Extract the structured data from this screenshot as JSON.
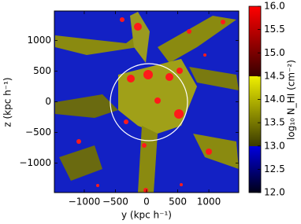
{
  "chart_data": {
    "type": "heatmap",
    "xlabel": "y (kpc h⁻¹)",
    "ylabel": "z (kpc h⁻¹)",
    "colorbar_label": "log₁₀ N_HI (cm⁻²)",
    "xlim": [
      -1480,
      1480
    ],
    "ylim": [
      -1480,
      1480
    ],
    "xticks": [
      {
        "value": -1000,
        "label": "−1000"
      },
      {
        "value": -500,
        "label": "−500"
      },
      0,
      500,
      1000
    ],
    "yticks": [
      {
        "value": -1000,
        "label": "−1000"
      },
      {
        "value": -500,
        "label": "−500"
      },
      0,
      500,
      1000
    ],
    "clim": [
      12,
      16
    ],
    "cticks": [
      {
        "value": 12,
        "label": "12.0"
      },
      {
        "value": 12.5,
        "label": "12.5"
      },
      {
        "value": 13,
        "label": "13.0"
      },
      {
        "value": 13.5,
        "label": "13.5"
      },
      {
        "value": 14,
        "label": "14.0"
      },
      {
        "value": 14.5,
        "label": "14.5"
      },
      {
        "value": 15,
        "label": "15.0"
      },
      {
        "value": 15.5,
        "label": "15.5"
      },
      {
        "value": 16,
        "label": "16.0"
      }
    ]
  }
}
